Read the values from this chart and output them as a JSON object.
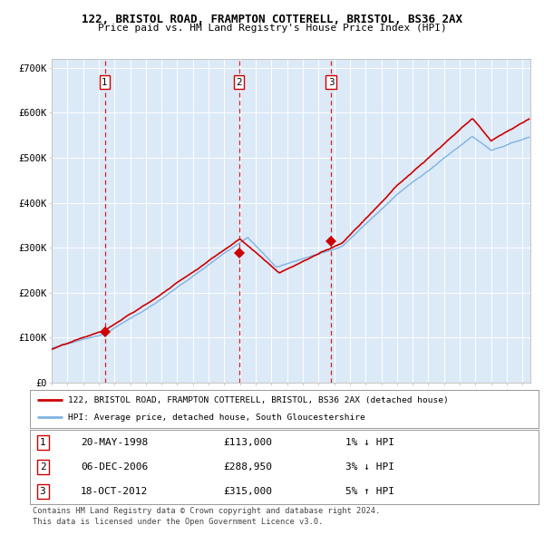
{
  "title1": "122, BRISTOL ROAD, FRAMPTON COTTERELL, BRISTOL, BS36 2AX",
  "title2": "Price paid vs. HM Land Registry's House Price Index (HPI)",
  "legend_red": "122, BRISTOL ROAD, FRAMPTON COTTERELL, BRISTOL, BS36 2AX (detached house)",
  "legend_blue": "HPI: Average price, detached house, South Gloucestershire",
  "sales": [
    {
      "num": 1,
      "date": "20-MAY-1998",
      "price": 113000,
      "pct": "1%",
      "dir": "↓",
      "year": 1998.38
    },
    {
      "num": 2,
      "date": "06-DEC-2006",
      "price": 288950,
      "pct": "3%",
      "dir": "↓",
      "year": 2006.93
    },
    {
      "num": 3,
      "date": "18-OCT-2012",
      "price": 315000,
      "pct": "5%",
      "dir": "↑",
      "year": 2012.79
    }
  ],
  "footer1": "Contains HM Land Registry data © Crown copyright and database right 2024.",
  "footer2": "This data is licensed under the Open Government Licence v3.0.",
  "bg_color": "#dce9f7",
  "red_color": "#cc0000",
  "blue_color": "#7fb3e0",
  "ylim": [
    0,
    720000
  ],
  "xlim_start": 1995.0,
  "xlim_end": 2025.5,
  "table_rows": [
    [
      "1",
      "20-MAY-1998",
      "£113,000",
      "1% ↓ HPI"
    ],
    [
      "2",
      "06-DEC-2006",
      "£288,950",
      "3% ↓ HPI"
    ],
    [
      "3",
      "18-OCT-2012",
      "£315,000",
      "5% ↑ HPI"
    ]
  ]
}
